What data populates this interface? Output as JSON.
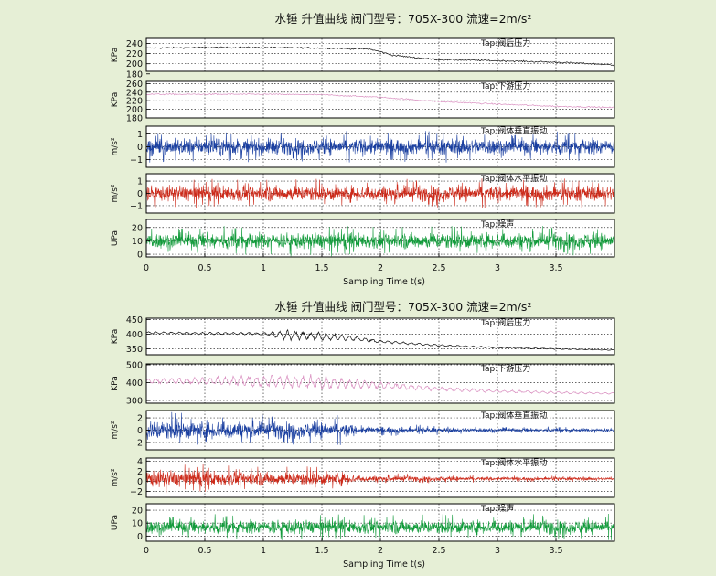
{
  "colors": {
    "background": "#e6efd6",
    "panel": "#ffffff",
    "pressure_black": "#111111",
    "pressure_pink": "#d98fc0",
    "vertical_blue": "#1a3fa0",
    "horizontal_red": "#cc2a1a",
    "noise_green": "#119a3a"
  },
  "chart_data": [
    {
      "type": "line",
      "title": "水锤 升值曲线   阀门型号：705X-300   流速=2m/s²",
      "xlabel": "Sampling Time t(s)",
      "xlim": [
        0,
        4
      ],
      "xticks": [
        0,
        0.5,
        1,
        1.5,
        2,
        2.5,
        3,
        3.5
      ],
      "xtick_labels": [
        "0",
        "0.5",
        "1",
        "1.5",
        "2",
        "2.5",
        "3",
        "3.5"
      ],
      "grid": true,
      "panels": [
        {
          "ylabel": "KPa",
          "legend": "Tap:阀后压力",
          "ylim": [
            185,
            250
          ],
          "yticks": [
            180,
            200,
            220,
            240
          ],
          "color": "pressure_black",
          "series": {
            "x": [
              0,
              0.5,
              1,
              1.5,
              1.9,
              2.0,
              2.1,
              2.3,
              2.5,
              3.0,
              3.5,
              3.9,
              4.0
            ],
            "y": [
              231,
              232,
              232,
              231,
              229,
              224,
              217,
              212,
              208,
              206,
              203,
              199,
              197
            ]
          }
        },
        {
          "ylabel": "KPa",
          "legend": "Tap:下游压力",
          "ylim": [
            180,
            265
          ],
          "yticks": [
            180,
            200,
            220,
            240,
            260
          ],
          "color": "pressure_pink",
          "series": {
            "x": [
              0,
              0.5,
              1,
              1.5,
              2,
              2.5,
              3,
              3.5,
              4
            ],
            "y": [
              235,
              235,
              235,
              234,
              228,
              218,
              212,
              207,
              204
            ]
          }
        },
        {
          "ylabel": "m/s²",
          "legend": "Tap:阀体垂直振动",
          "ylim": [
            -1.6,
            1.6
          ],
          "yticks": [
            -1,
            0,
            1
          ],
          "color": "vertical_blue",
          "series": {
            "x": [
              0,
              4
            ],
            "envelope": [
              0.95,
              0.95
            ]
          }
        },
        {
          "ylabel": "m/s²",
          "legend": "Tap:阀体水平振动",
          "ylim": [
            -1.6,
            1.6
          ],
          "yticks": [
            -1,
            0,
            1
          ],
          "color": "horizontal_red",
          "series": {
            "x": [
              0,
              4
            ],
            "envelope": [
              0.95,
              0.95
            ]
          }
        },
        {
          "ylabel": "UPa",
          "legend": "Tap:噪声",
          "ylim": [
            -2,
            26
          ],
          "yticks": [
            0,
            10,
            20
          ],
          "color": "noise_green",
          "series": {
            "x": [
              0,
              4
            ],
            "mean": 10,
            "envelope": [
              9,
              9
            ]
          }
        }
      ]
    },
    {
      "type": "line",
      "title": "水锤 升值曲线   阀门型号：705X-300   流速=2m/s²",
      "xlabel": "Sampling Time t(s)",
      "xlim": [
        0,
        4
      ],
      "xticks": [
        0,
        0.5,
        1,
        1.5,
        2,
        2.5,
        3,
        3.5
      ],
      "xtick_labels": [
        "0",
        "0.5",
        "1",
        "1.5",
        "2",
        "2.5",
        "3",
        "3.5"
      ],
      "grid": true,
      "panels": [
        {
          "ylabel": "KPa",
          "legend": "Tap:阀后压力",
          "ylim": [
            330,
            455
          ],
          "yticks": [
            350,
            400,
            450
          ],
          "color": "pressure_black",
          "series": {
            "x": [
              0,
              0.5,
              1,
              1.2,
              1.5,
              1.8,
              2.0,
              2.5,
              3.0,
              3.5,
              4.0
            ],
            "y": [
              405,
              403,
              402,
              398,
              392,
              385,
              375,
              362,
              355,
              350,
              346
            ],
            "oscillation": [
              5,
              5,
              5,
              22,
              18,
              10,
              6,
              4,
              3,
              2,
              2
            ]
          }
        },
        {
          "ylabel": "KPa",
          "legend": "Tap:下游压力",
          "ylim": [
            285,
            505
          ],
          "yticks": [
            300,
            400,
            500
          ],
          "color": "pressure_pink",
          "series": {
            "x": [
              0,
              0.5,
              1,
              1.5,
              2,
              2.5,
              3,
              3.5,
              4
            ],
            "y": [
              410,
              410,
              408,
              400,
              385,
              365,
              352,
              345,
              340
            ],
            "oscillation": [
              20,
              25,
              45,
              45,
              25,
              15,
              10,
              8,
              6
            ]
          }
        },
        {
          "ylabel": "m/s²",
          "legend": "Tap:阀体垂直振动",
          "ylim": [
            -3.2,
            3.2
          ],
          "yticks": [
            -2,
            0,
            2
          ],
          "color": "vertical_blue",
          "series": {
            "x": [
              0,
              0.6,
              1.0,
              1.7,
              1.8,
              2.5,
              3.0,
              3.5,
              4.0
            ],
            "envelope": [
              2.4,
              2.3,
              2.0,
              1.9,
              0.9,
              0.6,
              0.5,
              0.45,
              0.4
            ]
          }
        },
        {
          "ylabel": "m/s²",
          "legend": "Tap:阀体水平振动",
          "ylim": [
            -3.2,
            4.6
          ],
          "yticks": [
            -2,
            0,
            2,
            4
          ],
          "color": "horizontal_red",
          "series": {
            "x": [
              0,
              0.6,
              1.0,
              1.7,
              1.8,
              2.5,
              3.0,
              3.5,
              4.0
            ],
            "mean": 0.5,
            "envelope": [
              2.5,
              2.3,
              2.0,
              1.9,
              1.0,
              0.7,
              0.55,
              0.45,
              0.4
            ]
          }
        },
        {
          "ylabel": "UPa",
          "legend": "Tap:噪声",
          "ylim": [
            -4,
            25
          ],
          "yticks": [
            0,
            10,
            20
          ],
          "color": "noise_green",
          "series": {
            "x": [
              0,
              4
            ],
            "mean": 7,
            "envelope": [
              8,
              8
            ]
          }
        }
      ]
    }
  ]
}
